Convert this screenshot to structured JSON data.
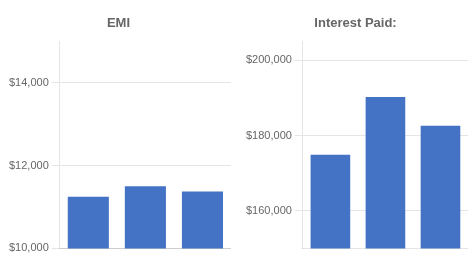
{
  "chart_data": [
    {
      "type": "bar",
      "title": "EMI",
      "categories": [
        null,
        null,
        null
      ],
      "values": [
        11249,
        11505,
        11377
      ],
      "color": "#4472C4",
      "ylim": [
        10000,
        15000
      ],
      "yticks": [
        {
          "value": 10000,
          "label": "$10,000"
        },
        {
          "value": 12000,
          "label": "$12,000"
        },
        {
          "value": 14000,
          "label": "$14,000"
        }
      ],
      "grid": true,
      "tick_labels": "y"
    },
    {
      "type": "bar",
      "title": "Interest Paid:",
      "categories": [
        null,
        null,
        null
      ],
      "values": [
        174938,
        190295,
        182592
      ],
      "color": "#4472C4",
      "ylim": [
        150000,
        205000
      ],
      "yticks": [
        {
          "value": 160000,
          "label": "$160,000"
        },
        {
          "value": 180000,
          "label": "$180,000"
        },
        {
          "value": 200000,
          "label": "$200,000"
        }
      ],
      "grid": true,
      "tick_labels": "y"
    }
  ]
}
